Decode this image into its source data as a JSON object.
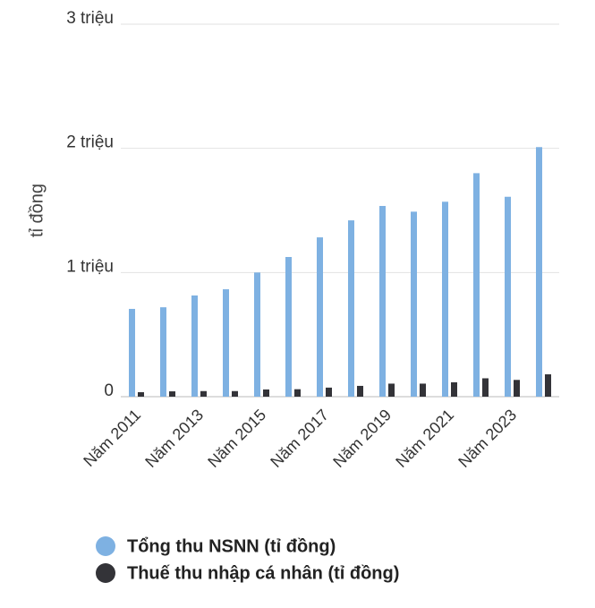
{
  "chart_data": {
    "type": "bar",
    "y_label": "tỉ đồng",
    "categories": [
      "Năm 2011",
      null,
      "Năm 2013",
      null,
      "Năm 2015",
      null,
      "Năm 2017",
      null,
      "Năm 2019",
      null,
      "Năm 2021",
      null,
      "Năm 2023",
      null
    ],
    "series": [
      {
        "name": "Tổng thu NSNN (tỉ đồng)",
        "color": "#7eb1e2",
        "values": [
          707000,
          720000,
          815000,
          865000,
          1000000,
          1125000,
          1283000,
          1420000,
          1536000,
          1490000,
          1570000,
          1800000,
          1610000,
          2010000
        ]
      },
      {
        "name": "Thuế thu nhập cá nhân (tỉ đồng)",
        "color": "#333338",
        "values": [
          36000,
          43000,
          45000,
          45000,
          58000,
          60000,
          73000,
          87000,
          105000,
          105000,
          116000,
          148000,
          135000,
          180000
        ]
      }
    ],
    "ylim": [
      0,
      3000000
    ],
    "yticks": [
      0,
      {
        "value": 1000000,
        "label": "1 triệu"
      },
      {
        "value": 2000000,
        "label": "2 triệu"
      },
      {
        "value": 3000000,
        "label": "3 triệu"
      }
    ],
    "grid": true,
    "legend": "bottom"
  }
}
